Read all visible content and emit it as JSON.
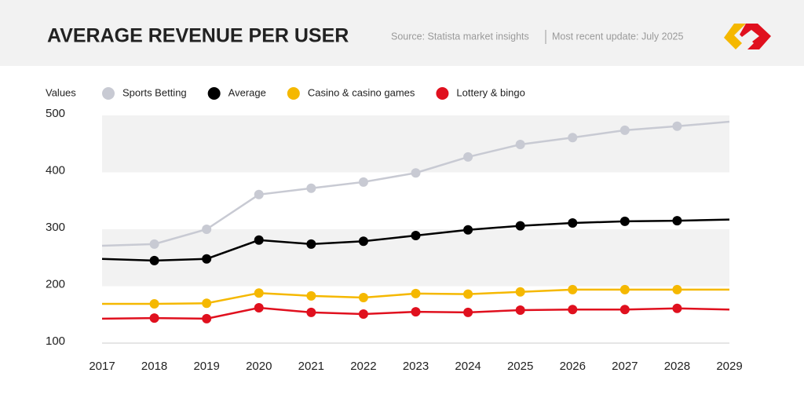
{
  "chart_data": {
    "type": "line",
    "title": "AVERAGE REVENUE PER USER",
    "source": "Source: Statista market insights",
    "update": "Most recent update: July 2025",
    "y_label": "Values",
    "x": [
      2017,
      2018,
      2019,
      2020,
      2021,
      2022,
      2023,
      2024,
      2025,
      2026,
      2027,
      2028,
      2029
    ],
    "xlim": [
      2017,
      2029
    ],
    "xticks": [
      2017,
      2018,
      2019,
      2020,
      2021,
      2022,
      2023,
      2024,
      2025,
      2026,
      2027,
      2028,
      2029
    ],
    "ylim": [
      100,
      500
    ],
    "yticks": [
      100,
      200,
      300,
      400,
      500
    ],
    "grid": "bands",
    "series": [
      {
        "name": "Sports Betting",
        "color": "#c8cad3",
        "values": [
          271,
          274,
          300,
          361,
          372,
          383,
          399,
          427,
          449,
          461,
          474,
          481,
          489
        ]
      },
      {
        "name": "Average",
        "color": "#000000",
        "values": [
          248,
          245,
          248,
          281,
          274,
          279,
          289,
          299,
          306,
          311,
          314,
          315,
          317
        ]
      },
      {
        "name": "Casino & casino games",
        "color": "#f5b800",
        "values": [
          169,
          169,
          170,
          188,
          183,
          180,
          187,
          186,
          190,
          194,
          194,
          194,
          194
        ]
      },
      {
        "name": "Lottery & bingo",
        "color": "#e0101e",
        "values": [
          143,
          144,
          143,
          162,
          154,
          151,
          155,
          154,
          158,
          159,
          159,
          161,
          159
        ]
      }
    ]
  }
}
